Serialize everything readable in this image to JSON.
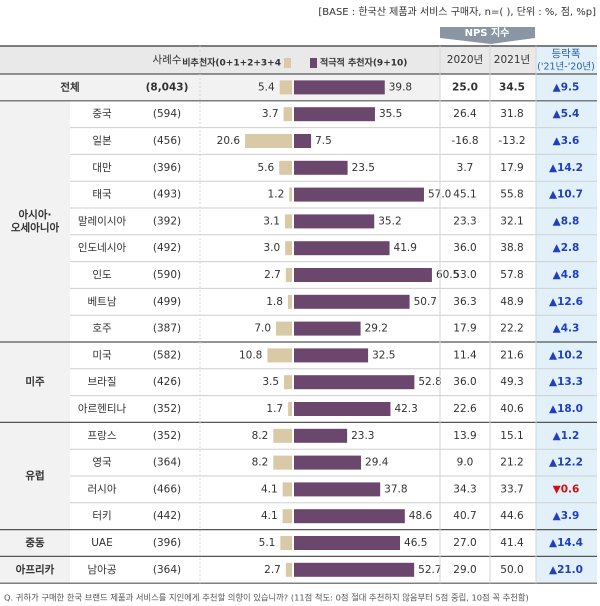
{
  "header": {
    "base": "[BASE : 한국산 제품과 서비스 구매자, n=( ), 단위 : %, 점, %p]",
    "nps": "NPS 지수"
  },
  "table": {
    "columns": {
      "n": "사례수",
      "detractor": "비추천자(0+1+2+3+4",
      "promoter": "적극적 추천자(9+10)",
      "y2020": "2020년",
      "y2021": "2021년",
      "change": "등락폭",
      "change_sub": "('21년-'20년)"
    },
    "groups": [
      {
        "label": [
          "전체"
        ],
        "rows": [
          {
            "name": null,
            "n": "(8,043)",
            "detractor": "5.4",
            "promoter": "39.8",
            "y2020": "25.0",
            "y2021": "34.5",
            "change": "▲9.5"
          }
        ]
      },
      {
        "label": [
          "아시아·",
          "오세아니아"
        ],
        "rows": [
          {
            "name": "중국",
            "n": "(594)",
            "detractor": "3.7",
            "promoter": "35.5",
            "y2020": "26.4",
            "y2021": "31.8",
            "change": "▲5.4"
          },
          {
            "name": "일본",
            "n": "(456)",
            "detractor": "20.6",
            "promoter": "7.5",
            "y2020": "-16.8",
            "y2021": "-13.2",
            "change": "▲3.6"
          },
          {
            "name": "대만",
            "n": "(396)",
            "detractor": "5.6",
            "promoter": "23.5",
            "y2020": "3.7",
            "y2021": "17.9",
            "change": "▲14.2"
          },
          {
            "name": "태국",
            "n": "(493)",
            "detractor": "1.2",
            "promoter": "57.0",
            "y2020": "45.1",
            "y2021": "55.8",
            "change": "▲10.7"
          },
          {
            "name": "말레이시아",
            "n": "(392)",
            "detractor": "3.1",
            "promoter": "35.2",
            "y2020": "23.3",
            "y2021": "32.1",
            "change": "▲8.8"
          },
          {
            "name": "인도네시아",
            "n": "(492)",
            "detractor": "3.0",
            "promoter": "41.9",
            "y2020": "36.0",
            "y2021": "38.8",
            "change": "▲2.8"
          },
          {
            "name": "인도",
            "n": "(590)",
            "detractor": "2.7",
            "promoter": "60.5",
            "y2020": "53.0",
            "y2021": "57.8",
            "change": "▲4.8"
          },
          {
            "name": "베트남",
            "n": "(499)",
            "detractor": "1.8",
            "promoter": "50.7",
            "y2020": "36.3",
            "y2021": "48.9",
            "change": "▲12.6"
          },
          {
            "name": "호주",
            "n": "(387)",
            "detractor": "7.0",
            "promoter": "29.2",
            "y2020": "17.9",
            "y2021": "22.2",
            "change": "▲4.3"
          }
        ]
      },
      {
        "label": [
          "미주"
        ],
        "rows": [
          {
            "name": "미국",
            "n": "(582)",
            "detractor": "10.8",
            "promoter": "32.5",
            "y2020": "11.4",
            "y2021": "21.6",
            "change": "▲10.2"
          },
          {
            "name": "브라질",
            "n": "(426)",
            "detractor": "3.5",
            "promoter": "52.8",
            "y2020": "36.0",
            "y2021": "49.3",
            "change": "▲13.3"
          },
          {
            "name": "아르헨티나",
            "n": "(352)",
            "detractor": "1.7",
            "promoter": "42.3",
            "y2020": "22.6",
            "y2021": "40.6",
            "change": "▲18.0"
          }
        ]
      },
      {
        "label": [
          "유럽"
        ],
        "rows": [
          {
            "name": "프랑스",
            "n": "(352)",
            "detractor": "8.2",
            "promoter": "23.3",
            "y2020": "13.9",
            "y2021": "15.1",
            "change": "▲1.2"
          },
          {
            "name": "영국",
            "n": "(364)",
            "detractor": "8.2",
            "promoter": "29.4",
            "y2020": "9.0",
            "y2021": "21.2",
            "change": "▲12.2"
          },
          {
            "name": "러시아",
            "n": "(466)",
            "detractor": "4.1",
            "promoter": "37.8",
            "y2020": "34.3",
            "y2021": "33.7",
            "change": "▼0.6"
          },
          {
            "name": "터키",
            "n": "(442)",
            "detractor": "4.1",
            "promoter": "48.6",
            "y2020": "40.7",
            "y2021": "44.6",
            "change": "▲3.9"
          }
        ]
      },
      {
        "label": [
          "중동"
        ],
        "rows": [
          {
            "name": "UAE",
            "n": "(396)",
            "detractor": "5.1",
            "promoter": "46.5",
            "y2020": "27.0",
            "y2021": "41.4",
            "change": "▲14.4"
          }
        ]
      },
      {
        "label": [
          "아프리카"
        ],
        "rows": [
          {
            "name": "남아공",
            "n": "(364)",
            "detractor": "2.7",
            "promoter": "52.7",
            "y2020": "29.0",
            "y2021": "50.0",
            "change": "▲21.0"
          }
        ]
      }
    ]
  },
  "footnote": "Q. 귀하가 구매한 한국 브랜드 제품과 서비스를 지인에게 추천할 의향이 있습니까? (11점 척도: 0점 절대 추천하지 않음부터 5점 중립, 10점 꼭 추천함)"
}
